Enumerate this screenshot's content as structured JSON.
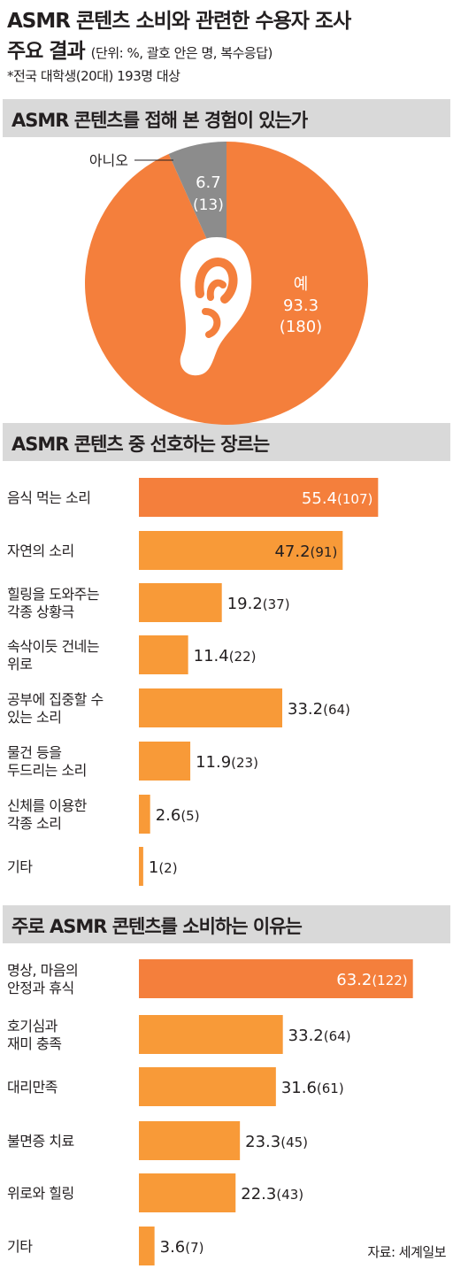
{
  "header": {
    "title_line1": "ASMR 콘텐츠 소비와 관련한 수용자 조사",
    "title_line2": "주요 결과",
    "unit": "(단위: %, 괄호 안은 명, 복수응답)",
    "note": "*전국 대학생(20대) 193명 대상"
  },
  "colors": {
    "orange": "#f47f3c",
    "bar_orange": "#f89a38",
    "grey": "#8c8c8c",
    "head_bg": "#d9d9d9"
  },
  "chart_data": [
    {
      "type": "pie",
      "title": "ASMR 콘텐츠를 접해 본 경험이 있는가",
      "slices": [
        {
          "name": "예",
          "value": 93.3,
          "count": "(180)",
          "color": "#f47f3c"
        },
        {
          "name": "아니오",
          "value": 6.7,
          "count": "(13)",
          "color": "#8c8c8c"
        }
      ],
      "icon": "ear-icon"
    },
    {
      "type": "bar",
      "orientation": "horizontal",
      "title": "ASMR 콘텐츠 중 선호하는 장르는",
      "categories": [
        [
          "음식 먹는 소리"
        ],
        [
          "자연의 소리"
        ],
        [
          "힐링을 도와주는",
          "각종 상황극"
        ],
        [
          "속삭이듯 건네는",
          "위로"
        ],
        [
          "공부에 집중할 수",
          "있는 소리"
        ],
        [
          "물건 등을",
          "두드리는 소리"
        ],
        [
          "신체를 이용한",
          "각종 소리"
        ],
        [
          "기타"
        ]
      ],
      "values": [
        55.4,
        47.2,
        19.2,
        11.4,
        33.2,
        11.9,
        2.6,
        1
      ],
      "value_labels": [
        "55.4",
        "47.2",
        "19.2",
        "11.4",
        "33.2",
        "11.9",
        "2.6",
        "1"
      ],
      "counts": [
        "(107)",
        "(91)",
        "(37)",
        "(22)",
        "(64)",
        "(23)",
        "(5)",
        "(2)"
      ],
      "highlight_index": 0
    },
    {
      "type": "bar",
      "orientation": "horizontal",
      "title": "주로 ASMR 콘텐츠를 소비하는 이유는",
      "categories": [
        [
          "명상, 마음의",
          "안정과 휴식"
        ],
        [
          "호기심과",
          "재미 충족"
        ],
        [
          "대리만족"
        ],
        [
          "불면증 치료"
        ],
        [
          "위로와 힐링"
        ],
        [
          "기타"
        ]
      ],
      "values": [
        63.2,
        33.2,
        31.6,
        23.3,
        22.3,
        3.6
      ],
      "value_labels": [
        "63.2",
        "33.2",
        "31.6",
        "23.3",
        "22.3",
        "3.6"
      ],
      "counts": [
        "(122)",
        "(64)",
        "(61)",
        "(45)",
        "(43)",
        "(7)"
      ],
      "highlight_index": 0
    }
  ],
  "source": "자료: 세계일보"
}
